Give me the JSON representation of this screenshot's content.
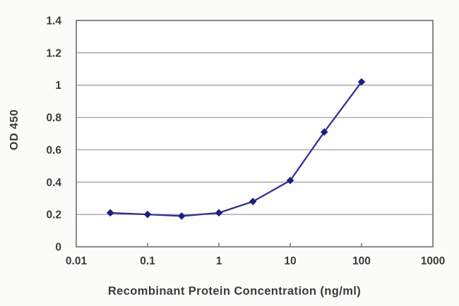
{
  "figure": {
    "background": "#fbfbfa",
    "plot_background": "#fefefe"
  },
  "chart_data": {
    "type": "line",
    "title": "",
    "xlabel": "Recombinant Protein Concentration (ng/ml)",
    "ylabel": "OD 450",
    "x_scale": "log",
    "xlim": [
      0.01,
      1000
    ],
    "ylim": [
      0,
      1.4
    ],
    "grid": true,
    "legend": "none",
    "x_ticks": [
      {
        "value": 0.01,
        "label": "0.01"
      },
      {
        "value": 0.1,
        "label": "0.1"
      },
      {
        "value": 1,
        "label": "1"
      },
      {
        "value": 10,
        "label": "10"
      },
      {
        "value": 100,
        "label": "100"
      },
      {
        "value": 1000,
        "label": "1000"
      }
    ],
    "y_ticks": [
      {
        "value": 0,
        "label": "0"
      },
      {
        "value": 0.2,
        "label": "0.2"
      },
      {
        "value": 0.4,
        "label": "0.4"
      },
      {
        "value": 0.6,
        "label": "0.6"
      },
      {
        "value": 0.8,
        "label": "0.8"
      },
      {
        "value": 1,
        "label": "1"
      },
      {
        "value": 1.2,
        "label": "1.2"
      },
      {
        "value": 1.4,
        "label": "1.4"
      }
    ],
    "series": [
      {
        "name": "OD 450",
        "marker": "diamond",
        "x": [
          0.03,
          0.1,
          0.3,
          1,
          3,
          10,
          30,
          100
        ],
        "y": [
          0.21,
          0.2,
          0.19,
          0.21,
          0.28,
          0.41,
          0.71,
          1.02
        ],
        "line_color": "#32318f",
        "marker_color": "#1f1f7f"
      }
    ],
    "colors": {
      "grid_color": "#9b9b9b",
      "axis_color": "#7d7d7d",
      "text_color": "#3b3b3b"
    }
  }
}
